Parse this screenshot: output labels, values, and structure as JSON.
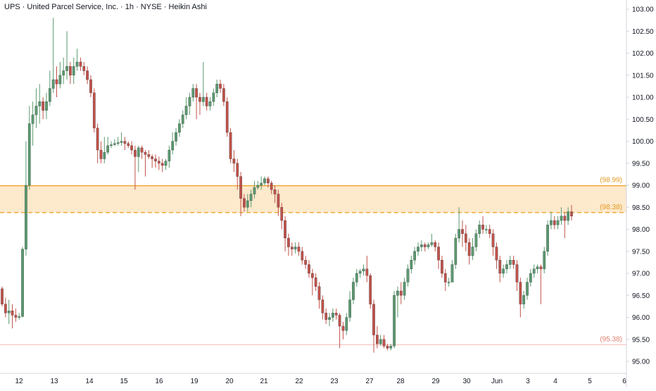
{
  "title": "UPS · United Parcel Service, Inc. · 1h · NYSE · Heikin Ashi",
  "colors": {
    "up": "#5b9a6f",
    "down": "#c2524a",
    "zone_line": "#f0a020",
    "zone_fill": "#fde9cc",
    "support_line": "#f0b8b0",
    "label_zone": "#e09a20",
    "label_support": "#e08070",
    "axis_text": "#131722",
    "axis_border": "#d1d4dc"
  },
  "chart_data": {
    "type": "candlestick",
    "title": "UPS · United Parcel Service, Inc. · 1h · NYSE · Heikin Ashi",
    "y_axis": {
      "min": 94.8,
      "max": 103.2,
      "ticks": [
        95.0,
        95.5,
        96.0,
        96.5,
        97.0,
        97.5,
        98.0,
        98.5,
        99.0,
        99.5,
        100.0,
        100.5,
        101.0,
        101.5,
        102.0,
        102.5,
        103.0
      ],
      "tick_labels": [
        "95.00",
        "95.50",
        "96.00",
        "96.50",
        "97.00",
        "97.50",
        "98.00",
        "98.50",
        "99.00",
        "99.50",
        "100.00",
        "100.50",
        "101.00",
        "101.50",
        "102.00",
        "102.50",
        "103.00"
      ]
    },
    "x_axis": {
      "labels": [
        "12",
        "13",
        "14",
        "15",
        "16",
        "19",
        "20",
        "21",
        "22",
        "23",
        "27",
        "28",
        "29",
        "30",
        "Jun",
        "3",
        "4",
        "5",
        "6"
      ],
      "start_index": 0
    },
    "levels": [
      {
        "value": 98.99,
        "label": "(98.99)",
        "style": "solid",
        "role": "zone-top"
      },
      {
        "value": 98.38,
        "label": "(98.38)",
        "style": "dashed",
        "role": "zone-bottom"
      },
      {
        "value": 95.38,
        "label": "(95.38)",
        "style": "solid",
        "role": "support"
      }
    ],
    "candles": [
      [
        96.65,
        96.3,
        96.7,
        96.25
      ],
      [
        96.3,
        96.1,
        96.45,
        96.0
      ],
      [
        96.1,
        96.15,
        96.4,
        95.85
      ],
      [
        96.15,
        96.05,
        96.3,
        95.75
      ],
      [
        96.05,
        96.0,
        96.2,
        95.9
      ],
      [
        96.0,
        96.02,
        96.1,
        95.95
      ],
      [
        96.02,
        97.55,
        97.6,
        96.0
      ],
      [
        97.55,
        99.0,
        100.0,
        97.4
      ],
      [
        99.0,
        100.4,
        100.8,
        98.9
      ],
      [
        100.4,
        100.6,
        100.9,
        99.9
      ],
      [
        100.6,
        100.8,
        101.2,
        100.3
      ],
      [
        100.8,
        100.9,
        101.3,
        100.4
      ],
      [
        100.9,
        100.7,
        101.0,
        100.5
      ],
      [
        100.7,
        100.9,
        101.1,
        100.5
      ],
      [
        100.9,
        101.2,
        101.6,
        100.8
      ],
      [
        101.2,
        101.4,
        102.8,
        101.1
      ],
      [
        101.4,
        101.3,
        101.7,
        101.0
      ],
      [
        101.3,
        101.5,
        101.8,
        101.2
      ],
      [
        101.5,
        101.6,
        101.9,
        101.3
      ],
      [
        101.6,
        101.7,
        102.5,
        101.4
      ],
      [
        101.7,
        101.5,
        101.8,
        101.3
      ],
      [
        101.5,
        101.7,
        101.9,
        101.3
      ],
      [
        101.7,
        101.8,
        102.1,
        101.6
      ],
      [
        101.8,
        101.7,
        101.9,
        101.6
      ],
      [
        101.7,
        101.6,
        101.8,
        101.5
      ],
      [
        101.6,
        101.4,
        101.7,
        101.3
      ],
      [
        101.4,
        101.1,
        101.5,
        101.0
      ],
      [
        101.1,
        100.3,
        101.2,
        100.2
      ],
      [
        100.3,
        99.8,
        100.4,
        99.5
      ],
      [
        99.8,
        99.6,
        100.0,
        99.5
      ],
      [
        99.6,
        99.75,
        100.1,
        99.5
      ],
      [
        99.75,
        99.9,
        100.1,
        99.7
      ],
      [
        99.9,
        99.92,
        100.0,
        99.85
      ],
      [
        99.92,
        99.95,
        100.05,
        99.9
      ],
      [
        99.95,
        99.97,
        100.1,
        99.9
      ],
      [
        99.97,
        100.0,
        100.2,
        99.9
      ],
      [
        100.0,
        99.95,
        100.1,
        99.8
      ],
      [
        99.95,
        99.9,
        100.0,
        99.85
      ],
      [
        99.9,
        99.8,
        100.0,
        99.7
      ],
      [
        99.8,
        99.65,
        99.9,
        98.9
      ],
      [
        99.65,
        99.85,
        99.9,
        99.3
      ],
      [
        99.85,
        99.75,
        99.9,
        99.6
      ],
      [
        99.75,
        99.7,
        99.8,
        99.2
      ],
      [
        99.7,
        99.65,
        99.8,
        99.6
      ],
      [
        99.65,
        99.6,
        99.7,
        99.4
      ],
      [
        99.6,
        99.55,
        99.7,
        99.4
      ],
      [
        99.55,
        99.5,
        99.65,
        99.35
      ],
      [
        99.5,
        99.45,
        99.6,
        99.3
      ],
      [
        99.45,
        99.55,
        99.6,
        99.35
      ],
      [
        99.55,
        99.8,
        99.9,
        99.4
      ],
      [
        99.8,
        100.0,
        100.2,
        99.7
      ],
      [
        100.0,
        100.2,
        100.3,
        99.9
      ],
      [
        100.2,
        100.4,
        100.5,
        100.1
      ],
      [
        100.4,
        100.6,
        100.7,
        100.3
      ],
      [
        100.6,
        100.8,
        101.0,
        100.5
      ],
      [
        100.8,
        101.0,
        101.1,
        100.6
      ],
      [
        101.0,
        101.2,
        101.3,
        100.9
      ],
      [
        101.2,
        101.0,
        101.3,
        100.5
      ],
      [
        101.0,
        100.9,
        101.1,
        100.6
      ],
      [
        100.9,
        101.0,
        101.8,
        100.8
      ],
      [
        101.0,
        100.8,
        101.1,
        100.7
      ],
      [
        100.8,
        100.9,
        101.0,
        100.7
      ],
      [
        100.9,
        101.1,
        101.2,
        100.8
      ],
      [
        101.1,
        101.3,
        101.4,
        101.0
      ],
      [
        101.3,
        101.2,
        101.4,
        101.1
      ],
      [
        101.2,
        100.9,
        101.3,
        100.8
      ],
      [
        100.9,
        100.2,
        101.0,
        100.1
      ],
      [
        100.2,
        99.6,
        100.3,
        99.5
      ],
      [
        99.6,
        99.5,
        99.8,
        99.3
      ],
      [
        99.5,
        99.2,
        99.6,
        98.9
      ],
      [
        99.2,
        98.7,
        99.3,
        98.3
      ],
      [
        98.7,
        98.5,
        98.8,
        98.4
      ],
      [
        98.5,
        98.65,
        98.8,
        98.4
      ],
      [
        98.65,
        98.8,
        98.9,
        98.5
      ],
      [
        98.8,
        98.95,
        99.1,
        98.7
      ],
      [
        98.95,
        99.0,
        99.1,
        98.9
      ],
      [
        99.0,
        99.05,
        99.2,
        98.9
      ],
      [
        99.05,
        99.15,
        99.2,
        99.0
      ],
      [
        99.15,
        99.05,
        99.2,
        98.95
      ],
      [
        99.05,
        98.9,
        99.1,
        98.8
      ],
      [
        98.9,
        98.8,
        99.0,
        98.6
      ],
      [
        98.8,
        98.5,
        98.9,
        98.3
      ],
      [
        98.5,
        98.2,
        98.6,
        98.0
      ],
      [
        98.2,
        97.8,
        98.3,
        97.5
      ],
      [
        97.8,
        97.6,
        97.9,
        97.4
      ],
      [
        97.6,
        97.55,
        97.7,
        97.4
      ],
      [
        97.55,
        97.6,
        97.7,
        97.45
      ],
      [
        97.6,
        97.5,
        97.7,
        97.4
      ],
      [
        97.5,
        97.3,
        97.6,
        97.2
      ],
      [
        97.3,
        97.2,
        97.4,
        97.1
      ],
      [
        97.2,
        97.0,
        97.3,
        96.9
      ],
      [
        97.0,
        96.9,
        97.1,
        96.5
      ],
      [
        96.9,
        96.7,
        97.0,
        96.6
      ],
      [
        96.7,
        96.4,
        96.8,
        96.2
      ],
      [
        96.4,
        96.1,
        96.5,
        95.95
      ],
      [
        96.1,
        95.95,
        96.2,
        95.85
      ],
      [
        95.95,
        96.0,
        96.1,
        95.8
      ],
      [
        96.0,
        96.1,
        96.2,
        95.9
      ],
      [
        96.1,
        96.05,
        96.2,
        95.95
      ],
      [
        96.05,
        95.8,
        96.1,
        95.3
      ],
      [
        95.8,
        95.7,
        95.9,
        95.5
      ],
      [
        95.7,
        96.0,
        96.1,
        95.6
      ],
      [
        96.0,
        96.4,
        96.6,
        95.9
      ],
      [
        96.4,
        96.8,
        96.9,
        96.3
      ],
      [
        96.8,
        97.0,
        97.1,
        96.7
      ],
      [
        97.0,
        97.05,
        97.1,
        96.9
      ],
      [
        97.05,
        97.1,
        97.2,
        96.95
      ],
      [
        97.1,
        96.95,
        97.4,
        96.8
      ],
      [
        96.95,
        96.3,
        97.0,
        96.2
      ],
      [
        96.3,
        95.6,
        96.4,
        95.2
      ],
      [
        95.6,
        95.4,
        95.8,
        95.3
      ],
      [
        95.4,
        95.5,
        95.6,
        95.35
      ],
      [
        95.5,
        95.35,
        95.6,
        95.3
      ],
      [
        95.35,
        95.3,
        95.4,
        95.25
      ],
      [
        95.3,
        95.35,
        95.4,
        95.25
      ],
      [
        95.35,
        96.5,
        96.6,
        95.3
      ],
      [
        96.5,
        96.6,
        96.7,
        96.0
      ],
      [
        96.6,
        96.5,
        96.8,
        96.3
      ],
      [
        96.5,
        96.8,
        96.9,
        96.4
      ],
      [
        96.8,
        97.1,
        97.2,
        96.7
      ],
      [
        97.1,
        97.3,
        97.4,
        97.0
      ],
      [
        97.3,
        97.5,
        97.6,
        97.2
      ],
      [
        97.5,
        97.6,
        97.7,
        97.4
      ],
      [
        97.6,
        97.65,
        97.75,
        97.5
      ],
      [
        97.65,
        97.6,
        97.7,
        97.5
      ],
      [
        97.6,
        97.65,
        97.7,
        97.55
      ],
      [
        97.65,
        97.7,
        97.9,
        97.6
      ],
      [
        97.7,
        97.6,
        97.75,
        97.5
      ],
      [
        97.6,
        97.3,
        97.7,
        97.1
      ],
      [
        97.3,
        97.0,
        97.4,
        96.9
      ],
      [
        97.0,
        96.8,
        97.1,
        96.6
      ],
      [
        96.8,
        96.8,
        96.9,
        96.7
      ],
      [
        96.8,
        97.2,
        97.3,
        96.8
      ],
      [
        97.2,
        97.8,
        97.9,
        97.1
      ],
      [
        97.8,
        98.0,
        98.5,
        97.7
      ],
      [
        98.0,
        97.9,
        98.2,
        97.6
      ],
      [
        97.9,
        97.7,
        98.1,
        97.5
      ],
      [
        97.7,
        97.4,
        97.8,
        97.2
      ],
      [
        97.4,
        97.6,
        97.8,
        97.3
      ],
      [
        97.6,
        97.9,
        98.0,
        97.5
      ],
      [
        97.9,
        98.1,
        98.2,
        97.8
      ],
      [
        98.1,
        98.0,
        98.3,
        97.9
      ],
      [
        98.0,
        98.0,
        98.1,
        97.9
      ],
      [
        98.0,
        97.9,
        98.1,
        97.8
      ],
      [
        97.9,
        97.6,
        98.0,
        97.4
      ],
      [
        97.6,
        97.3,
        97.7,
        97.1
      ],
      [
        97.3,
        97.0,
        97.4,
        96.8
      ],
      [
        97.0,
        97.1,
        97.2,
        96.9
      ],
      [
        97.1,
        97.2,
        97.3,
        97.0
      ],
      [
        97.2,
        97.3,
        97.4,
        97.1
      ],
      [
        97.3,
        97.2,
        97.4,
        97.1
      ],
      [
        97.2,
        96.8,
        97.3,
        96.6
      ],
      [
        96.8,
        96.3,
        96.9,
        96.0
      ],
      [
        96.3,
        96.5,
        96.6,
        96.2
      ],
      [
        96.5,
        96.8,
        96.9,
        96.4
      ],
      [
        96.8,
        97.0,
        97.1,
        96.7
      ],
      [
        97.0,
        97.1,
        97.2,
        96.9
      ],
      [
        97.1,
        97.15,
        97.2,
        97.0
      ],
      [
        97.15,
        97.1,
        97.2,
        96.3
      ],
      [
        97.1,
        97.5,
        97.6,
        97.0
      ],
      [
        97.5,
        98.1,
        98.2,
        97.4
      ],
      [
        98.1,
        98.2,
        98.4,
        98.0
      ],
      [
        98.2,
        98.1,
        98.3,
        98.0
      ],
      [
        98.1,
        98.2,
        98.3,
        98.0
      ],
      [
        98.2,
        98.3,
        98.5,
        98.1
      ],
      [
        98.3,
        98.2,
        98.4,
        97.8
      ],
      [
        98.2,
        98.4,
        98.5,
        98.1
      ],
      [
        98.4,
        98.3,
        98.55,
        98.2
      ]
    ]
  }
}
